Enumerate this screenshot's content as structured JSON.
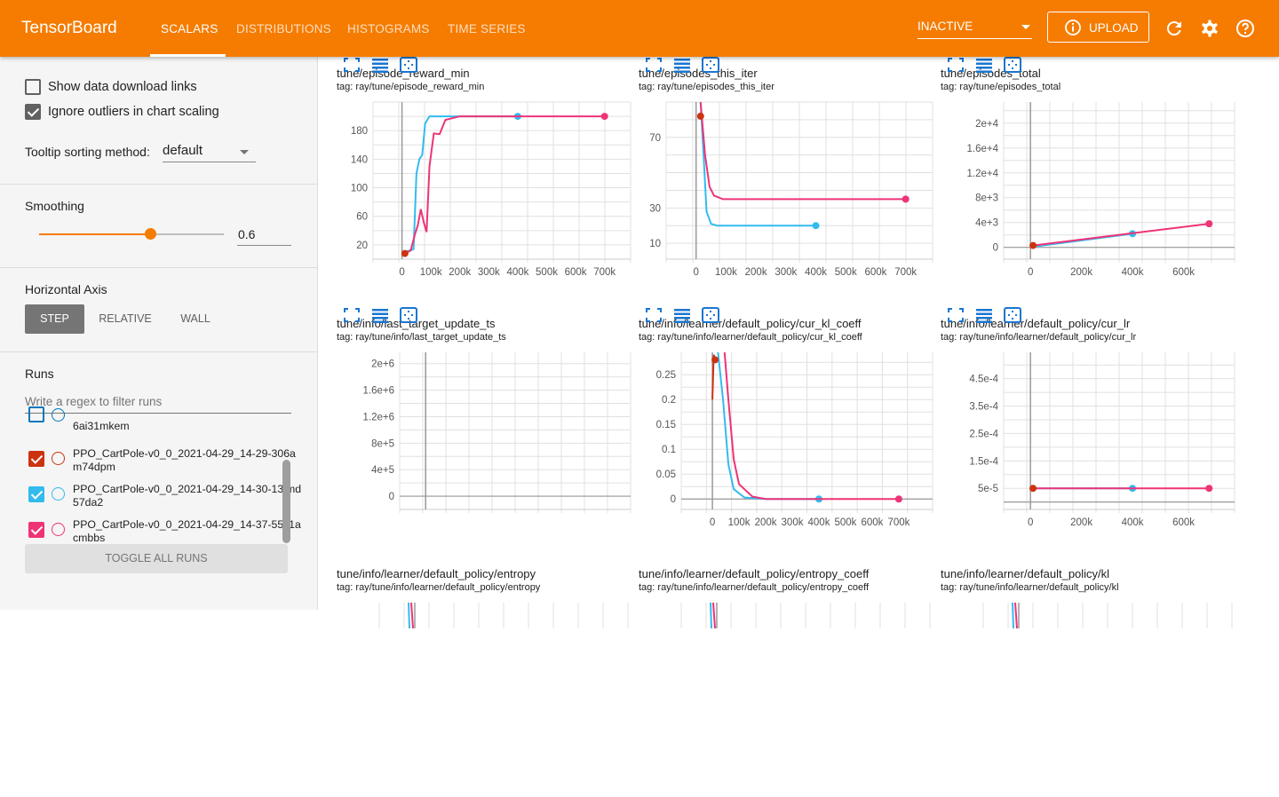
{
  "header": {
    "title": "TensorBoard",
    "tabs": [
      {
        "label": "SCALARS",
        "active": true
      },
      {
        "label": "DISTRIBUTIONS"
      },
      {
        "label": "HISTOGRAMS"
      },
      {
        "label": "TIME SERIES"
      }
    ],
    "status_select": "INACTIVE",
    "upload_label": "UPLOAD",
    "icons": [
      "info-icon",
      "refresh-icon",
      "gear-icon",
      "help-icon"
    ],
    "color": "#f57c00"
  },
  "sidebar": {
    "show_download_links": {
      "label": "Show data download links",
      "checked": false
    },
    "ignore_outliers": {
      "label": "Ignore outliers in chart scaling",
      "checked": true
    },
    "tooltip_sorting": {
      "label": "Tooltip sorting method:",
      "value": "default"
    },
    "smoothing": {
      "label": "Smoothing",
      "value": "0.6",
      "fraction": 0.6
    },
    "horizontal_axis": {
      "label": "Horizontal Axis",
      "options": [
        "STEP",
        "RELATIVE",
        "WALL"
      ],
      "selected": "STEP"
    },
    "runs": {
      "label": "Runs",
      "filter_placeholder": "Write a regex to filter runs",
      "partial_run": "6ai31mkem",
      "items": [
        {
          "name": "PPO_CartPole-v0_0_2021-04-29_14-29-306am74dpm",
          "color": "#cc3311",
          "checked": true
        },
        {
          "name": "PPO_CartPole-v0_0_2021-04-29_14-30-13imd57da2",
          "color": "#33bbee",
          "checked": true
        },
        {
          "name": "PPO_CartPole-v0_0_2021-04-29_14-37-5511acmbbs",
          "color": "#ee3377",
          "checked": true
        }
      ],
      "toggle_all_label": "TOGGLE ALL RUNS"
    }
  },
  "charts": [
    {
      "title": "tune/episode_reward_min",
      "tag": "tag: ray/tune/episode_reward_min",
      "chart_data": {
        "type": "line",
        "xlim": [
          -100000,
          790000
        ],
        "ylim": [
          0,
          220
        ],
        "xticks": [
          "0",
          "100k",
          "200k",
          "300k",
          "400k",
          "500k",
          "600k",
          "700k"
        ],
        "xtick_values": [
          0,
          100000,
          200000,
          300000,
          400000,
          500000,
          600000,
          700000
        ],
        "yticks": [
          20,
          60,
          100,
          140,
          180
        ],
        "ytick_labels": [
          "20",
          "60",
          "100",
          "140",
          "180"
        ],
        "series": [
          {
            "run": 2,
            "points": [
              [
                10000,
                10
              ],
              [
                40000,
                14
              ],
              [
                50000,
                120
              ],
              [
                60000,
                140
              ],
              [
                70000,
                146
              ],
              [
                80000,
                190
              ],
              [
                95000,
                200
              ],
              [
                400000,
                200
              ]
            ]
          },
          {
            "run": 3,
            "points": [
              [
                10000,
                8
              ],
              [
                30000,
                12
              ],
              [
                45000,
                35
              ],
              [
                55000,
                48
              ],
              [
                65000,
                70
              ],
              [
                75000,
                52
              ],
              [
                85000,
                38
              ],
              [
                95000,
                130
              ],
              [
                110000,
                176
              ],
              [
                130000,
                175
              ],
              [
                150000,
                195
              ],
              [
                200000,
                200
              ],
              [
                700000,
                200
              ]
            ]
          },
          {
            "run": 1,
            "points": [
              [
                10000,
                8
              ]
            ]
          }
        ]
      }
    },
    {
      "title": "tune/episodes_this_iter",
      "tag": "tag: ray/tune/episodes_this_iter",
      "chart_data": {
        "type": "line",
        "xlim": [
          -100000,
          790000
        ],
        "ylim": [
          1,
          90
        ],
        "xtick_values": [
          0,
          100000,
          200000,
          300000,
          400000,
          500000,
          600000,
          700000
        ],
        "xticks": [
          "0",
          "100k",
          "200k",
          "300k",
          "400k",
          "500k",
          "600k",
          "700k"
        ],
        "yticks": [
          10,
          30,
          70
        ],
        "ytick_labels": [
          "10",
          "30",
          "70"
        ],
        "series": [
          {
            "run": 2,
            "points": [
              [
                15000,
                90
              ],
              [
                25000,
                60
              ],
              [
                35000,
                28
              ],
              [
                50000,
                21
              ],
              [
                70000,
                20
              ],
              [
                400000,
                20
              ]
            ]
          },
          {
            "run": 3,
            "points": [
              [
                15000,
                90
              ],
              [
                30000,
                60
              ],
              [
                45000,
                42
              ],
              [
                60000,
                37
              ],
              [
                90000,
                35
              ],
              [
                700000,
                35
              ]
            ]
          },
          {
            "run": 1,
            "points": [
              [
                15000,
                82
              ]
            ]
          }
        ]
      }
    },
    {
      "title": "tune/episodes_total",
      "tag": "tag: ray/tune/episodes_total",
      "chart_data": {
        "type": "line",
        "xlim": [
          -105000,
          800000
        ],
        "ylim": [
          -1900,
          23400
        ],
        "xtick_values": [
          0,
          200000,
          400000,
          600000
        ],
        "xticks": [
          "0",
          "200k",
          "400k",
          "600k"
        ],
        "yticks": [
          0,
          4000,
          8000,
          12000,
          16000,
          20000
        ],
        "ytick_labels": [
          "0",
          "4e+3",
          "8e+3",
          "1.2e+4",
          "1.6e+4",
          "2e+4"
        ],
        "series": [
          {
            "run": 2,
            "points": [
              [
                10000,
                100
              ],
              [
                400000,
                2200
              ]
            ]
          },
          {
            "run": 3,
            "points": [
              [
                10000,
                300
              ],
              [
                700000,
                3800
              ]
            ]
          },
          {
            "run": 1,
            "points": [
              [
                10000,
                300
              ]
            ]
          }
        ]
      }
    },
    {
      "title": "tune/info/last_target_update_ts",
      "tag": "tag: ray/tune/info/last_target_update_ts",
      "chart_data": {
        "type": "line",
        "xlim": [
          -100000,
          790000
        ],
        "ylim": [
          -200000,
          2170000
        ],
        "xtick_values": [],
        "xticks": [],
        "yticks": [
          0,
          400000,
          800000,
          1200000,
          1600000,
          2000000
        ],
        "ytick_labels": [
          "0",
          "4e+5",
          "8e+5",
          "1.2e+6",
          "1.6e+6",
          "2e+6"
        ],
        "series": []
      }
    },
    {
      "title": "tune/info/learner/default_policy/cur_kl_coeff",
      "tag": "tag: ray/tune/info/learner/default_policy/cur_kl_coeff",
      "chart_data": {
        "type": "line",
        "xlim": [
          -117000,
          827000
        ],
        "ylim": [
          -0.021,
          0.295
        ],
        "xtick_values": [
          0,
          100000,
          200000,
          300000,
          400000,
          500000,
          600000,
          700000
        ],
        "xticks": [
          "0",
          "100k",
          "200k",
          "300k",
          "400k",
          "500k",
          "600k",
          "700k"
        ],
        "yticks": [
          0,
          0.05,
          0.1,
          0.15,
          0.2,
          0.25
        ],
        "ytick_labels": [
          "0",
          "0.05",
          "0.1",
          "0.15",
          "0.2",
          "0.25"
        ],
        "series": [
          {
            "run": 2,
            "points": [
              [
                20000,
                0.3
              ],
              [
                40000,
                0.2
              ],
              [
                60000,
                0.07
              ],
              [
                80000,
                0.02
              ],
              [
                120000,
                0.003
              ],
              [
                200000,
                0
              ],
              [
                400000,
                0
              ]
            ]
          },
          {
            "run": 3,
            "points": [
              [
                25000,
                0.3
              ],
              [
                45000,
                0.3
              ],
              [
                60000,
                0.2
              ],
              [
                80000,
                0.08
              ],
              [
                100000,
                0.03
              ],
              [
                150000,
                0.005
              ],
              [
                200000,
                0
              ],
              [
                700000,
                0
              ]
            ]
          },
          {
            "run": 1,
            "points": [
              [
                0,
                0.2
              ],
              [
                5000,
                0.29
              ],
              [
                10000,
                0.28
              ]
            ]
          }
        ]
      }
    },
    {
      "title": "tune/info/learner/default_policy/cur_lr",
      "tag": "tag: ray/tune/info/learner/default_policy/cur_lr",
      "chart_data": {
        "type": "line",
        "xlim": [
          -105000,
          800000
        ],
        "ylim": [
          -2.7e-05,
          0.000546
        ],
        "xtick_values": [
          0,
          200000,
          400000,
          600000
        ],
        "xticks": [
          "0",
          "200k",
          "400k",
          "600k"
        ],
        "yticks": [
          5e-05,
          0.00015,
          0.00025,
          0.00035,
          0.00045
        ],
        "ytick_labels": [
          "5e-5",
          "1.5e-4",
          "2.5e-4",
          "3.5e-4",
          "4.5e-4"
        ],
        "series": [
          {
            "run": 2,
            "points": [
              [
                10000,
                5e-05
              ],
              [
                400000,
                5e-05
              ]
            ]
          },
          {
            "run": 3,
            "points": [
              [
                10000,
                5e-05
              ],
              [
                700000,
                5e-05
              ]
            ]
          },
          {
            "run": 1,
            "points": [
              [
                10000,
                5e-05
              ]
            ]
          }
        ]
      }
    },
    {
      "title": "tune/info/learner/default_policy/entropy",
      "tag": "tag: ray/tune/info/learner/default_policy/entropy"
    },
    {
      "title": "tune/info/learner/default_policy/entropy_coeff",
      "tag": "tag: ray/tune/info/learner/default_policy/entropy_coeff"
    },
    {
      "title": "tune/info/learner/default_policy/kl",
      "tag": "tag: ray/tune/info/learner/default_policy/kl"
    }
  ]
}
